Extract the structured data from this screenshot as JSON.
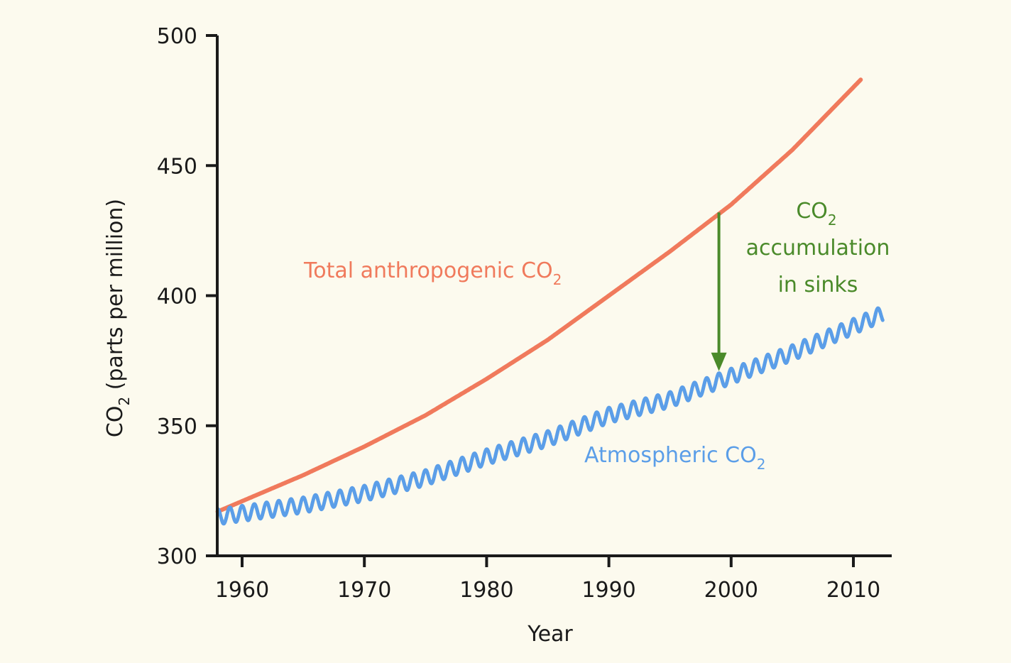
{
  "chart_data": {
    "type": "line",
    "title": "",
    "xlabel": "Year",
    "ylabel": "CO2 (parts per million)",
    "ylabel_parts": {
      "main": "CO",
      "sub": "2",
      "rest": " (parts per million)"
    },
    "xlim": [
      1958,
      2013
    ],
    "ylim": [
      300,
      500
    ],
    "x_ticks": [
      1960,
      1970,
      1980,
      1990,
      2000,
      2010
    ],
    "y_ticks": [
      300,
      350,
      400,
      450,
      500
    ],
    "grid": false,
    "colors": {
      "background": "#fcfaee",
      "axis": "#1a1a1a",
      "total": "#f07a5c",
      "atmospheric": "#5b9ee8",
      "sinks": "#4a8a2a"
    },
    "series": [
      {
        "name": "Total anthropogenic CO2",
        "label": {
          "main": "Total anthropogenic CO",
          "sub": "2"
        },
        "x": [
          1958,
          1965,
          1970,
          1975,
          1980,
          1985,
          1990,
          1995,
          2000,
          2005,
          2010.6
        ],
        "values": [
          317,
          331,
          342,
          354,
          368,
          383,
          400,
          417,
          435,
          456,
          483
        ]
      },
      {
        "name": "Atmospheric CO2",
        "label": {
          "main": "Atmospheric CO",
          "sub": "2"
        },
        "seasonal_amplitude_ppm": 3,
        "x": [
          1958,
          1965,
          1970,
          1975,
          1980,
          1985,
          1990,
          1995,
          2000,
          2005,
          2012.4
        ],
        "values": [
          315,
          319.5,
          324,
          330,
          338,
          345,
          354,
          360,
          369,
          378,
          393
        ]
      }
    ],
    "annotations": [
      {
        "type": "arrow",
        "name": "CO2 accumulation in sinks",
        "x": 1999,
        "from_value": 432,
        "to_value": 371,
        "lines": [
          {
            "main": "CO",
            "sub": "2"
          },
          {
            "main": "accumulation",
            "sub": ""
          },
          {
            "main": "in sinks",
            "sub": ""
          }
        ]
      }
    ]
  }
}
